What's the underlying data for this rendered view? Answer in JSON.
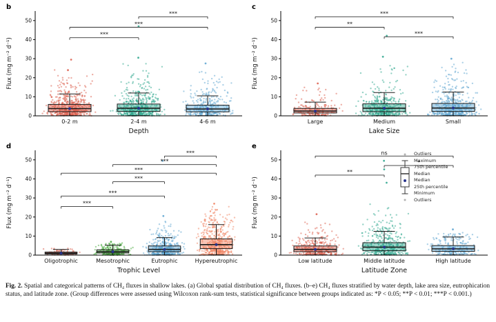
{
  "chart_data": [
    {
      "type": "boxplot-jitter",
      "letter": "b",
      "xlabel": "Depth",
      "ylabel": "Flux (mg m⁻² d⁻¹)",
      "ylim": [
        0,
        55
      ],
      "yticks": [
        0,
        10,
        20,
        30,
        40,
        50
      ],
      "categories": [
        "0-2 m",
        "2-4 m",
        "4-6 m"
      ],
      "colors": [
        "#DC5B4A",
        "#2AA58C",
        "#5BA3D0"
      ],
      "groups": [
        {
          "n": 550,
          "median": 3.8,
          "q1": 2.2,
          "q3": 6.0,
          "whisker_low": 0.1,
          "whisker_high": 11.5,
          "point_max": 26,
          "outliers": [
            29.5,
            24.0
          ]
        },
        {
          "n": 480,
          "median": 4.0,
          "q1": 2.3,
          "q3": 6.2,
          "whisker_low": 0.1,
          "whisker_high": 12.0,
          "point_max": 28,
          "outliers": [
            47.0,
            30.5
          ]
        },
        {
          "n": 320,
          "median": 3.6,
          "q1": 2.1,
          "q3": 5.6,
          "whisker_low": 0.1,
          "whisker_high": 10.5,
          "point_max": 24,
          "outliers": [
            27.5
          ]
        }
      ],
      "significance": [
        {
          "g1": 1,
          "g2": 2,
          "y": 52,
          "label": "***"
        },
        {
          "g1": 0,
          "g2": 2,
          "y": 46.5,
          "label": "***"
        },
        {
          "g1": 0,
          "g2": 1,
          "y": 41,
          "label": "***"
        }
      ]
    },
    {
      "type": "boxplot-jitter",
      "letter": "c",
      "xlabel": "Lake Size",
      "ylabel": "Flux (mg m⁻² d⁻¹)",
      "ylim": [
        0,
        55
      ],
      "yticks": [
        0,
        10,
        20,
        30,
        40,
        50
      ],
      "categories": [
        "Large",
        "Medium",
        "Small"
      ],
      "colors": [
        "#DC5B4A",
        "#2AA58C",
        "#5BA3D0"
      ],
      "groups": [
        {
          "n": 180,
          "median": 2.5,
          "q1": 1.5,
          "q3": 3.9,
          "whisker_low": 0.1,
          "whisker_high": 7.2,
          "point_max": 15,
          "outliers": [
            17.0
          ]
        },
        {
          "n": 430,
          "median": 4.0,
          "q1": 2.2,
          "q3": 6.3,
          "whisker_low": 0.1,
          "whisker_high": 12.2,
          "point_max": 27,
          "outliers": [
            42.0,
            31.0
          ]
        },
        {
          "n": 470,
          "median": 4.1,
          "q1": 2.3,
          "q3": 6.5,
          "whisker_low": 0.1,
          "whisker_high": 12.5,
          "point_max": 28,
          "outliers": [
            30.0
          ]
        }
      ],
      "significance": [
        {
          "g1": 0,
          "g2": 2,
          "y": 52,
          "label": "***"
        },
        {
          "g1": 0,
          "g2": 1,
          "y": 46.5,
          "label": "**"
        },
        {
          "g1": 1,
          "g2": 2,
          "y": 41.5,
          "label": "***"
        }
      ]
    },
    {
      "type": "boxplot-jitter",
      "letter": "d",
      "xlabel": "Trophic Level",
      "ylabel": "Flux (mg m⁻² d⁻¹)",
      "ylim": [
        0,
        55
      ],
      "yticks": [
        0,
        10,
        20,
        30,
        40,
        50
      ],
      "categories": [
        "Oligotrophic",
        "Mesotrophic",
        "Eutrophic",
        "Hypereutrophic"
      ],
      "colors": [
        "#DC5B4A",
        "#44A939",
        "#5BA3D0",
        "#F08160"
      ],
      "groups": [
        {
          "n": 70,
          "median": 1.0,
          "q1": 0.6,
          "q3": 1.6,
          "whisker_low": 0.05,
          "whisker_high": 3.0,
          "point_max": 3.8,
          "outliers": []
        },
        {
          "n": 230,
          "median": 1.8,
          "q1": 1.1,
          "q3": 2.8,
          "whisker_low": 0.05,
          "whisker_high": 5.2,
          "point_max": 6.5,
          "outliers": [
            7.0
          ]
        },
        {
          "n": 420,
          "median": 3.0,
          "q1": 1.8,
          "q3": 4.8,
          "whisker_low": 0.1,
          "whisker_high": 9.2,
          "point_max": 18,
          "outliers": [
            49.5,
            20.5
          ]
        },
        {
          "n": 520,
          "median": 5.5,
          "q1": 3.4,
          "q3": 8.5,
          "whisker_low": 0.15,
          "whisker_high": 16.0,
          "point_max": 26,
          "outliers": [
            27.0
          ]
        }
      ],
      "significance": [
        {
          "g1": 2,
          "g2": 3,
          "y": 52,
          "label": "***"
        },
        {
          "g1": 1,
          "g2": 3,
          "y": 47.5,
          "label": "***"
        },
        {
          "g1": 0,
          "g2": 3,
          "y": 43,
          "label": "***"
        },
        {
          "g1": 1,
          "g2": 2,
          "y": 38.5,
          "label": "***"
        },
        {
          "g1": 0,
          "g2": 2,
          "y": 31,
          "label": "***"
        },
        {
          "g1": 0,
          "g2": 1,
          "y": 25.5,
          "label": "***"
        }
      ]
    },
    {
      "type": "boxplot-jitter",
      "letter": "e",
      "xlabel": "Latitude Zone",
      "ylabel": "Flux (mg m⁻² d⁻¹)",
      "ylim": [
        0,
        55
      ],
      "yticks": [
        0,
        10,
        20,
        30,
        40,
        50
      ],
      "categories": [
        "Low latitude",
        "Middle latitude",
        "High latitude"
      ],
      "colors": [
        "#DC5B4A",
        "#2AA58C",
        "#5BA3D0"
      ],
      "groups": [
        {
          "n": 320,
          "median": 3.0,
          "q1": 1.8,
          "q3": 4.8,
          "whisker_low": 0.1,
          "whisker_high": 9.0,
          "point_max": 20,
          "outliers": [
            21.5
          ]
        },
        {
          "n": 430,
          "median": 4.2,
          "q1": 2.3,
          "q3": 6.5,
          "whisker_low": 0.1,
          "whisker_high": 12.5,
          "point_max": 30,
          "outliers": [
            49.5,
            45.0,
            38.0
          ]
        },
        {
          "n": 220,
          "median": 3.3,
          "q1": 2.0,
          "q3": 5.0,
          "whisker_low": 0.1,
          "whisker_high": 9.5,
          "point_max": 12,
          "outliers": [
            13.5
          ]
        }
      ],
      "significance": [
        {
          "g1": 0,
          "g2": 2,
          "y": 52,
          "label": "ns"
        },
        {
          "g1": 1,
          "g2": 2,
          "y": 47,
          "label": "*"
        },
        {
          "g1": 0,
          "g2": 1,
          "y": 42,
          "label": "**"
        }
      ]
    }
  ],
  "legend": {
    "items": [
      "Outliers",
      "Maximum",
      "75th percentile",
      "Median",
      "Median",
      "25th percentile",
      "Minimum",
      "Outliers"
    ]
  },
  "caption": {
    "label": "Fig. 2.",
    "text": " Spatial and categorical patterns of CH₄ fluxes in shallow lakes. (a) Global spatial distribution of CH₄ fluxes. (b–e) CH₄ fluxes stratified by water depth, lake area size, eutrophication status, and latitude zone. (Group differences were assessed using Wilcoxon rank-sum tests, statistical significance between groups indicated as: *P < 0.05; **P < 0.01; ***P < 0.001.)"
  },
  "style": {
    "mean_marker_color": "#26328C",
    "box_stroke_color": "#1a1a1a",
    "sig_line_color": "#333333"
  }
}
